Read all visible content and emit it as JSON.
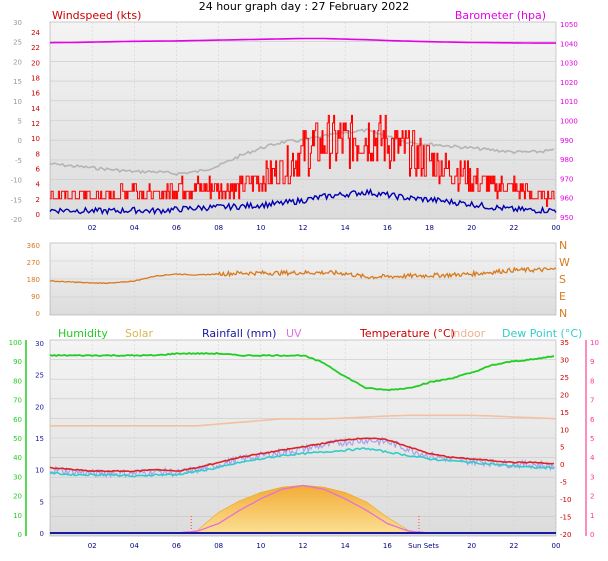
{
  "title": "24 hour graph day : 27 February 2022",
  "colors": {
    "windspeed": "#cc0000",
    "barometer": "#e600e6",
    "gust": "#ff0000",
    "wind_avg": "#0000b0",
    "direction": "#d87a1e",
    "humidity": "#22cc22",
    "solar": "#f5a623",
    "rainfall": "#1a1aa0",
    "uv": "#e070e0",
    "temperature": "#dd2222",
    "indoor": "#f4c0a0",
    "dewpoint": "#33cccc",
    "feels_like": "#a8a0f0"
  },
  "chart_data": [
    {
      "type": "line",
      "name": "wind-barometer-panel",
      "left_label": "Windspeed (kts)",
      "right_label": "Barometer (hpa)",
      "x_ticks": [
        "02",
        "04",
        "06",
        "08",
        "10",
        "12",
        "14",
        "16",
        "18",
        "20",
        "22",
        "00"
      ],
      "y_left_ticks": [
        "30",
        "25",
        "20",
        "15",
        "10",
        "5",
        "0",
        "-5",
        "-10",
        "-15",
        "-20"
      ],
      "y_left_ticks_inner": [
        "24",
        "22",
        "20",
        "18",
        "16",
        "14",
        "12",
        "10",
        "8",
        "6",
        "4",
        "2",
        "0"
      ],
      "y_right_ticks": [
        "1050",
        "1040",
        "1030",
        "1020",
        "1010",
        "1000",
        "990",
        "980",
        "970",
        "960",
        "950"
      ],
      "hours": [
        0,
        1,
        2,
        3,
        4,
        5,
        6,
        7,
        8,
        9,
        10,
        11,
        12,
        13,
        14,
        15,
        16,
        17,
        18,
        19,
        20,
        21,
        22,
        23,
        24
      ],
      "barometer_hpa": [
        1039.5,
        1039.6,
        1039.8,
        1040.0,
        1040.2,
        1040.3,
        1040.4,
        1040.6,
        1040.8,
        1041.0,
        1041.2,
        1041.4,
        1041.6,
        1041.6,
        1041.3,
        1041.0,
        1040.6,
        1040.3,
        1040.0,
        1039.8,
        1039.6,
        1039.5,
        1039.4,
        1039.3,
        1039.3
      ],
      "gust_kts": [
        2,
        2,
        2,
        2,
        3,
        2,
        3,
        3,
        3,
        3,
        4,
        5,
        7,
        8,
        8,
        9,
        8,
        7,
        6,
        5,
        4,
        3,
        3,
        2,
        2
      ],
      "wind_avg_kts": [
        0.5,
        0.5,
        0.4,
        0.4,
        0.5,
        0.4,
        0.6,
        0.8,
        0.9,
        1.0,
        1.2,
        1.4,
        1.8,
        2.3,
        2.6,
        2.9,
        2.5,
        2.1,
        1.9,
        1.6,
        1.3,
        0.9,
        0.6,
        0.5,
        0.5
      ],
      "feels_like_c": [
        -6,
        -6.5,
        -7,
        -7.5,
        -8,
        -8,
        -8.5,
        -8,
        -6.5,
        -4,
        -2,
        -0.5,
        0,
        1,
        2,
        2.5,
        1,
        -0.5,
        -1,
        -1.5,
        -2,
        -2.5,
        -3,
        -3,
        -2.5
      ]
    },
    {
      "type": "line",
      "name": "wind-direction-panel",
      "y_ticks": [
        "360",
        "270",
        "180",
        "90",
        "0"
      ],
      "compass": [
        "N",
        "W",
        "S",
        "E",
        "N"
      ],
      "hours": [
        0,
        1,
        2,
        3,
        4,
        5,
        6,
        7,
        8,
        9,
        10,
        11,
        12,
        13,
        14,
        15,
        16,
        17,
        18,
        19,
        20,
        21,
        22,
        23,
        24
      ],
      "direction_deg": [
        170,
        165,
        160,
        160,
        170,
        195,
        205,
        200,
        205,
        210,
        210,
        210,
        212,
        212,
        208,
        190,
        192,
        195,
        198,
        200,
        205,
        215,
        225,
        225,
        228
      ]
    },
    {
      "type": "line",
      "name": "temperature-humidity-panel",
      "legend": [
        "Humidity",
        "Solar",
        "Rainfall (mm)",
        "UV",
        "Temperature (°C)",
        "Indoor",
        "Dew Point (°C)"
      ],
      "x_ticks": [
        "02",
        "04",
        "06",
        "08",
        "10",
        "12",
        "14",
        "16",
        "Sun Sets",
        "20",
        "22",
        "00"
      ],
      "y_left_ticks": [
        "100",
        "90",
        "80",
        "70",
        "60",
        "50",
        "40",
        "30",
        "20",
        "10",
        "0"
      ],
      "y_mid_ticks": [
        "30",
        "25",
        "20",
        "15",
        "10",
        "5",
        "0"
      ],
      "y_right_ticks_temp": [
        "35",
        "30",
        "25",
        "20",
        "15",
        "10",
        "5",
        "0",
        "-5",
        "-10",
        "-15",
        "-20"
      ],
      "y_right_ticks_uv": [
        "10",
        "9",
        "8",
        "7",
        "6",
        "5",
        "4",
        "3",
        "2",
        "1",
        "0"
      ],
      "hours": [
        0,
        1,
        2,
        3,
        4,
        5,
        6,
        7,
        8,
        9,
        10,
        11,
        12,
        13,
        14,
        15,
        16,
        17,
        18,
        19,
        20,
        21,
        22,
        23,
        24
      ],
      "humidity_pct": [
        93,
        93,
        93,
        93,
        93,
        93,
        94,
        94,
        94,
        93,
        93,
        93,
        93,
        89,
        82,
        76,
        75,
        76,
        79,
        81,
        84,
        88,
        90,
        91,
        93
      ],
      "temperature_c": [
        -1,
        -1.5,
        -2,
        -2,
        -2,
        -1.5,
        -2,
        -1,
        0.5,
        2,
        3,
        4,
        5,
        6,
        7,
        7.5,
        7,
        5,
        3,
        2,
        1.5,
        1,
        0.5,
        0.5,
        0
      ],
      "dewpoint_c": [
        -2.5,
        -3,
        -3,
        -3,
        -3.5,
        -3,
        -3,
        -2,
        -1,
        0.5,
        1.5,
        2.5,
        3,
        3.5,
        4,
        4.5,
        3.5,
        2.5,
        1.5,
        1,
        0.5,
        0,
        -0.5,
        -1,
        -1
      ],
      "indoor_c": [
        11,
        11,
        11,
        11,
        11,
        11,
        11,
        11,
        11.5,
        12,
        12.5,
        13,
        13,
        13,
        13.2,
        13.5,
        13.8,
        14,
        14,
        14,
        14,
        13.8,
        13.5,
        13.3,
        13
      ],
      "solar_relative": [
        0,
        0,
        0,
        0,
        0,
        0,
        0,
        0.05,
        0.4,
        0.62,
        0.78,
        0.88,
        0.92,
        0.88,
        0.78,
        0.6,
        0.3,
        0.05,
        0,
        0,
        0,
        0,
        0,
        0,
        0
      ],
      "uv_index": [
        0,
        0,
        0,
        0,
        0,
        0,
        0,
        0.1,
        0.5,
        1.2,
        1.8,
        2.3,
        2.5,
        2.3,
        1.8,
        1.2,
        0.5,
        0.1,
        0,
        0,
        0,
        0,
        0,
        0,
        0
      ],
      "rainfall_mm": [
        0,
        0,
        0,
        0,
        0,
        0,
        0,
        0,
        0,
        0,
        0,
        0,
        0,
        0,
        0,
        0,
        0,
        0,
        0,
        0,
        0,
        0,
        0,
        0,
        0
      ]
    }
  ]
}
